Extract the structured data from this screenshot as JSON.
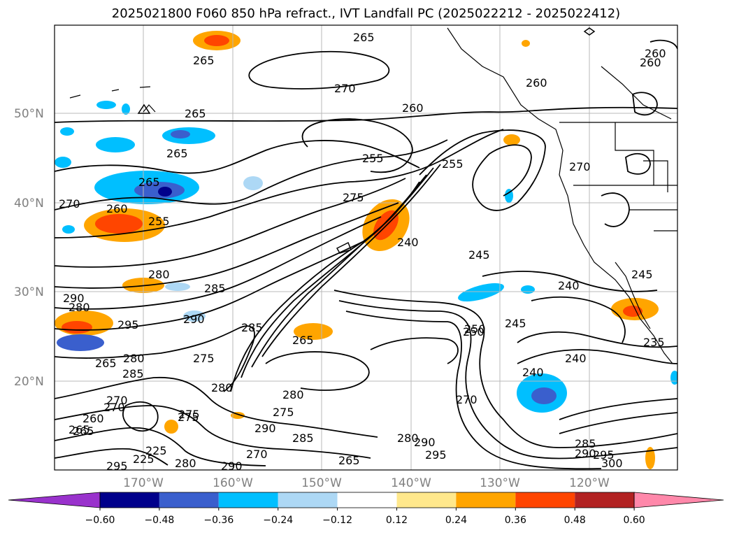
{
  "title": "2025021800 F060 850 hPa refract., IVT Landfall PC (2025022212 - 2025022412)",
  "lat_labels": [
    "50°N",
    "40°N",
    "30°N",
    "20°N"
  ],
  "lon_labels": [
    "170°W",
    "160°W",
    "150°W",
    "140°W",
    "130°W",
    "120°W"
  ],
  "contour_levels": [
    "265",
    "270",
    "260",
    "255",
    "275",
    "265",
    "265",
    "265",
    "255",
    "260",
    "270",
    "240",
    "245",
    "240",
    "280",
    "285",
    "290",
    "280",
    "290",
    "295",
    "285",
    "265",
    "250",
    "245",
    "240",
    "240",
    "235",
    "280",
    "275",
    "285",
    "280",
    "275",
    "265",
    "260",
    "270",
    "280",
    "275",
    "290",
    "285",
    "280",
    "290",
    "295",
    "285",
    "290",
    "295",
    "300",
    "260",
    "265",
    "260",
    "245",
    "270",
    "255",
    "260",
    "250",
    "265",
    "295",
    "270",
    "280",
    "290",
    "225",
    "270",
    "225",
    "275",
    "265",
    "270",
    "265"
  ],
  "colorbar": {
    "ticks": [
      "−0.60",
      "−0.48",
      "−0.36",
      "−0.24",
      "−0.12",
      "0.12",
      "0.24",
      "0.36",
      "0.48",
      "0.60"
    ],
    "colors": [
      "#9932cc",
      "#00008b",
      "#3a5fcd",
      "#00bfff",
      "#add8f5",
      "#ffffff",
      "#ffe88c",
      "#ffa500",
      "#ff4500",
      "#b22222",
      "#ff88aa"
    ]
  }
}
